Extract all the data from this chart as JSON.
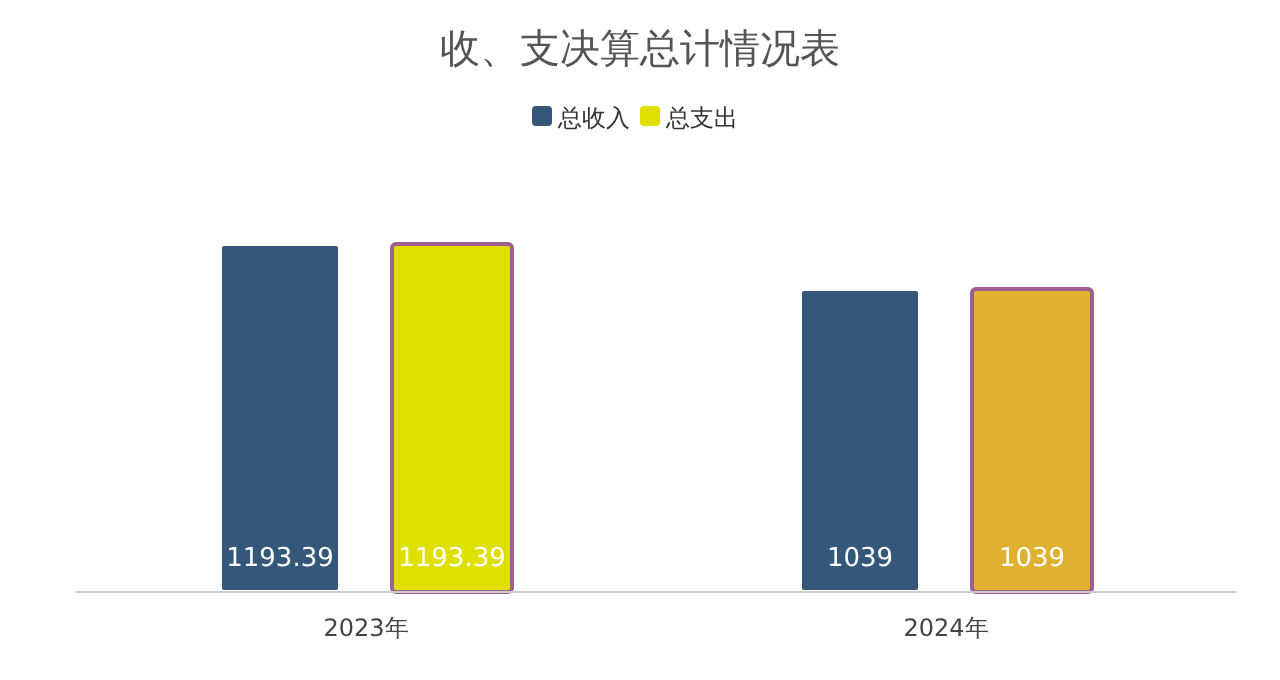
{
  "chart_data": {
    "type": "bar",
    "title": "收、支决算总计情况表",
    "categories": [
      "2023年",
      "2024年"
    ],
    "series": [
      {
        "name": "总收入",
        "color": "#34577a",
        "values": [
          1193.39,
          1039
        ]
      },
      {
        "name": "总支出",
        "colors": [
          "#e0e000",
          "#e0b030"
        ],
        "values": [
          1193.39,
          1039
        ]
      }
    ],
    "data_labels": true,
    "legend": "top",
    "tick_labels": "x"
  }
}
